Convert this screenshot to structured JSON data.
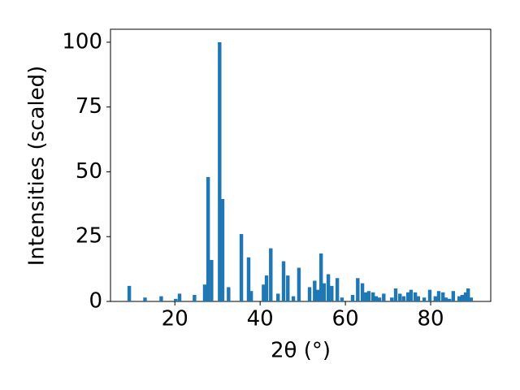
{
  "chart_data": {
    "type": "bar",
    "xlabel": "2θ (°)",
    "ylabel": "Intensities (scaled)",
    "color": "#1f77b4",
    "x": [
      9.3,
      13,
      16.8,
      20.2,
      21.1,
      24.6,
      27.0,
      27.8,
      28.6,
      30.5,
      31.2,
      32.6,
      35.6,
      37.3,
      37.9,
      40.8,
      41.5,
      42.5,
      44.2,
      45.5,
      46.5,
      47.8,
      49.1,
      51.6,
      52.8,
      53.5,
      54.3,
      55.0,
      56.0,
      56.8,
      58.1,
      59.2,
      61.7,
      62.9,
      64.0,
      64.8,
      65.5,
      66.5,
      67.2,
      68.0,
      69.0,
      70.9,
      71.8,
      72.8,
      73.7,
      74.7,
      75.4,
      76.4,
      77.1,
      78.5,
      79.8,
      81.1,
      81.9,
      82.9,
      83.6,
      84.4,
      85.3,
      86.7,
      87.4,
      88.2,
      88.8,
      89.5
    ],
    "values": [
      6,
      1.5,
      2,
      1,
      3,
      2.5,
      6.5,
      48,
      16,
      100,
      39.5,
      5.5,
      26,
      17,
      4,
      6.5,
      10,
      20.5,
      3,
      15.5,
      10,
      2,
      13,
      5.5,
      8,
      4.5,
      18.5,
      7,
      10.5,
      6,
      9,
      1.5,
      2.5,
      9,
      7,
      3.5,
      4,
      3.5,
      2,
      1.5,
      3,
      1.5,
      5,
      3,
      2,
      3.5,
      4.5,
      3.5,
      2,
      1.5,
      4.5,
      2,
      4,
      3.5,
      1.5,
      1,
      4,
      2,
      2.5,
      3.5,
      5,
      1.5
    ],
    "xlim": [
      4.9,
      94.1
    ],
    "ylim": [
      0,
      105
    ],
    "xticks": [
      20,
      40,
      60,
      80
    ],
    "yticks": [
      0,
      25,
      50,
      75,
      100
    ]
  }
}
